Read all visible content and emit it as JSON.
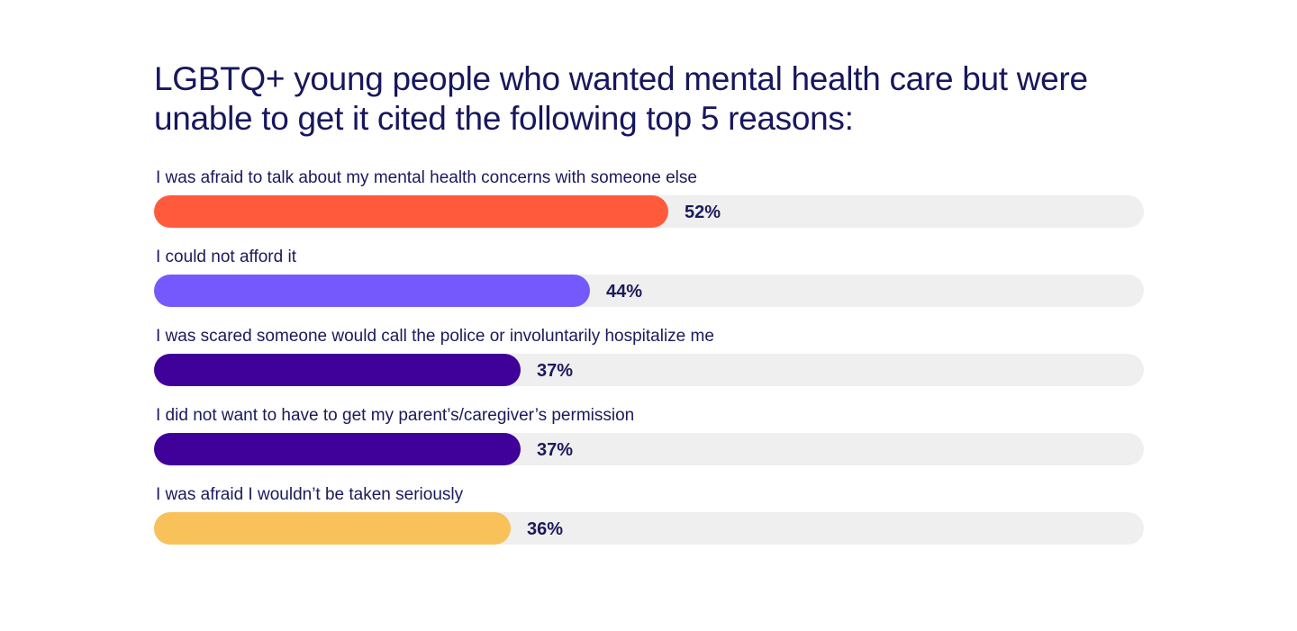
{
  "chart_data": {
    "type": "bar",
    "orientation": "horizontal",
    "title": "LGBTQ+ young people who wanted mental health care but were unable to get it cited the following top 5 reasons:",
    "xlim": [
      0,
      100
    ],
    "grid": false,
    "categories": [
      "I was afraid to talk about my mental health concerns with someone else",
      "I could not afford it",
      "I was scared someone would call the police or involuntarily hospitalize me",
      "I did not want to have to get my parent’s/caregiver’s permission",
      "I was afraid I wouldn’t be taken seriously"
    ],
    "values": [
      52,
      44,
      37,
      37,
      36
    ],
    "value_labels": [
      "52%",
      "44%",
      "37%",
      "37%",
      "36%"
    ],
    "colors": [
      "#ff5a3c",
      "#7559fc",
      "#40009a",
      "#40009a",
      "#f8c15a"
    ],
    "track_color": "#efefef"
  }
}
